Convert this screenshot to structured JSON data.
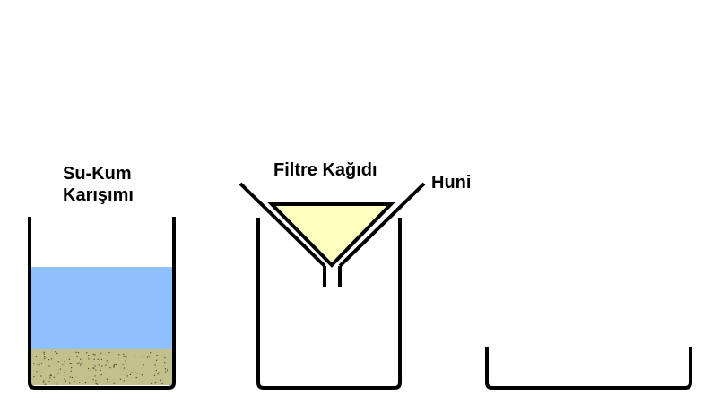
{
  "labels": {
    "mixture_line1": "Su-Kum",
    "mixture_line2": "Karışımı",
    "filter_paper": "Filtre Kağıdı",
    "funnel": "Huni"
  },
  "colors": {
    "water": "#8fbfff",
    "sand": "#c3c08c",
    "sand_dots": "#4a4a3a",
    "filter_paper": "#ffffc0",
    "outline": "#000000",
    "background": "#ffffff"
  }
}
